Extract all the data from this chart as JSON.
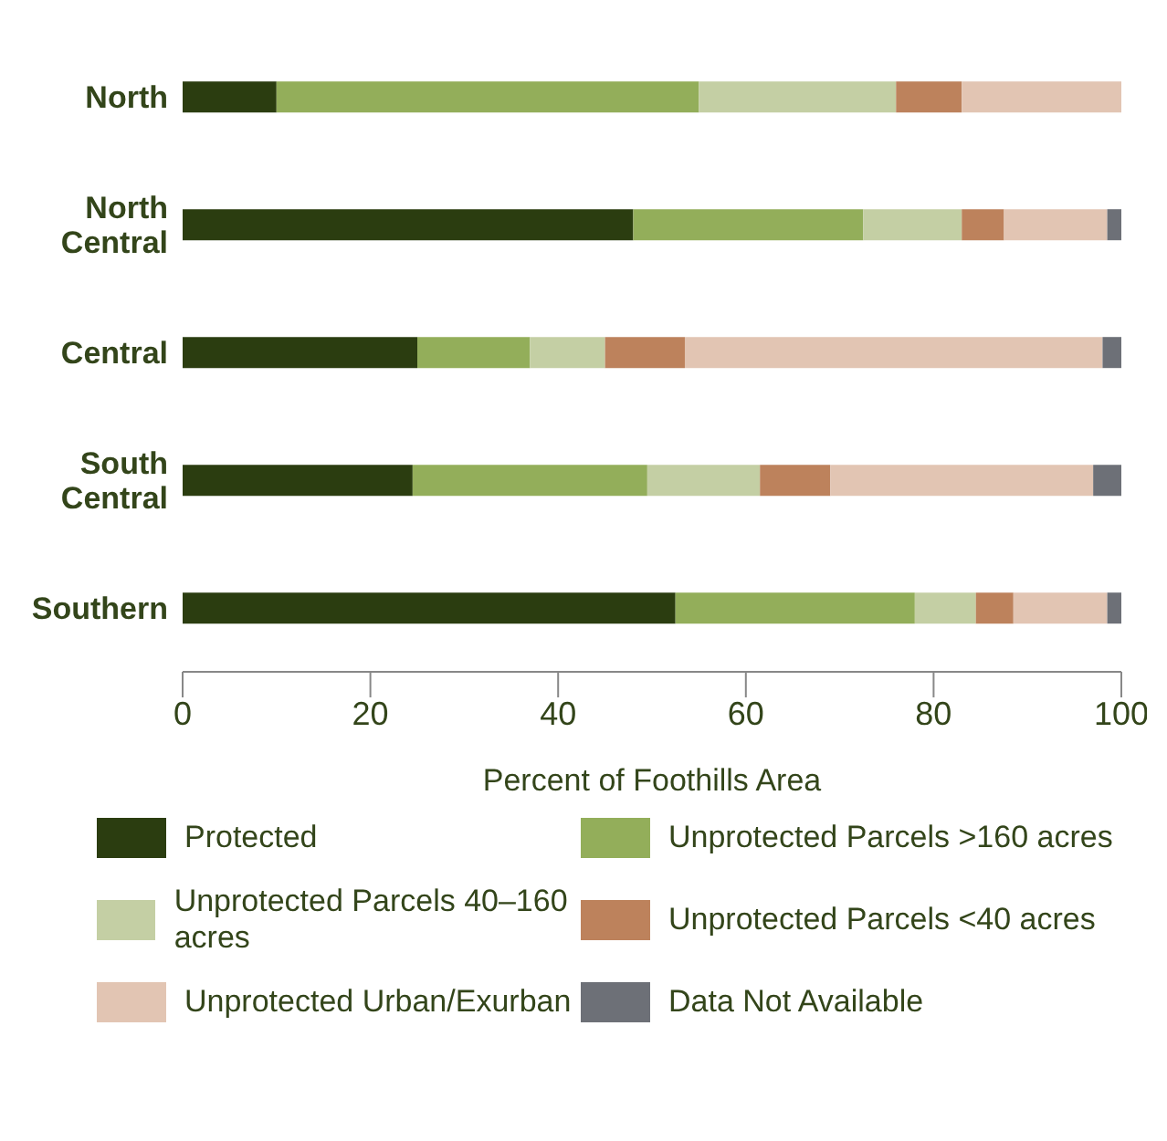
{
  "chart_data": {
    "type": "bar",
    "orientation": "horizontal",
    "stacked": true,
    "xlabel": "Percent of Foothills Area",
    "categories": [
      "North",
      "North Central",
      "Central",
      "South Central",
      "Southern"
    ],
    "series": [
      {
        "name": "Protected",
        "color": "#2b3d10",
        "values": [
          10,
          48,
          25,
          24.5,
          52.5
        ]
      },
      {
        "name": "Unprotected Parcels >160 acres",
        "color": "#93ae5a",
        "values": [
          45,
          24.5,
          12,
          25,
          25.5
        ]
      },
      {
        "name": "Unprotected Parcels 40–160 acres",
        "color": "#c4cfa4",
        "values": [
          21,
          10.5,
          8,
          12,
          6.5
        ]
      },
      {
        "name": "Unprotected Parcels <40 acres",
        "color": "#bd825c",
        "values": [
          7,
          4.5,
          8.5,
          7.5,
          4
        ]
      },
      {
        "name": "Unprotected Urban/Exurban",
        "color": "#e2c5b3",
        "values": [
          17,
          11,
          44.5,
          28,
          10
        ]
      },
      {
        "name": "Data Not Available",
        "color": "#6d7077",
        "values": [
          0,
          1.5,
          2,
          3,
          1.5
        ]
      }
    ],
    "xlim": [
      0,
      100
    ],
    "xticks": [
      0,
      20,
      40,
      60,
      80,
      100
    ],
    "grid": false,
    "legend": "bottom"
  }
}
